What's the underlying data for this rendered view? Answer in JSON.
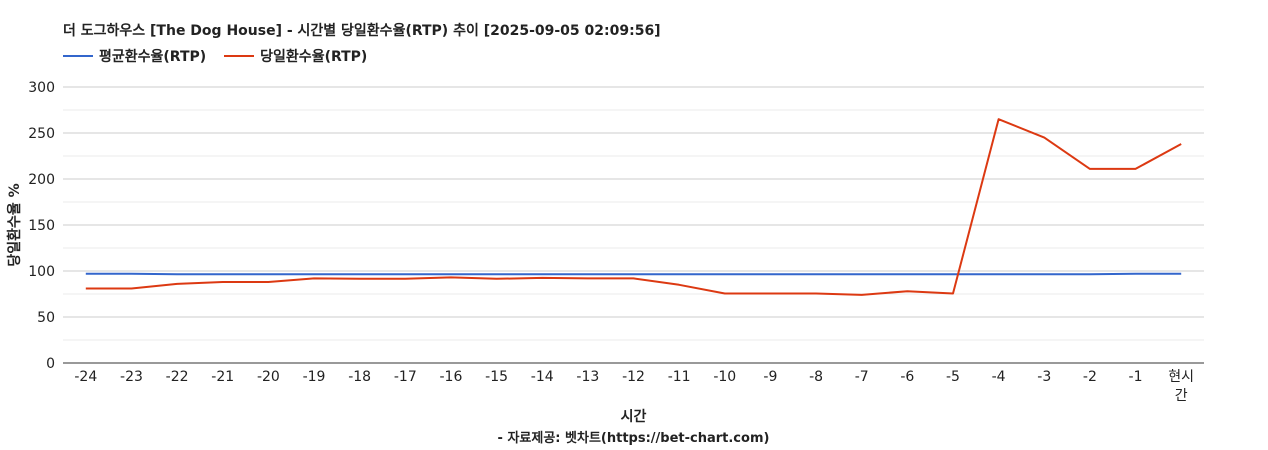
{
  "chart_data": {
    "type": "line",
    "title": "더 도그하우스 [The Dog House] - 시간별 당일환수율(RTP) 추이 [2025-09-05 02:09:56]",
    "xlabel": "시간",
    "ylabel": "당일환수율 %",
    "source": "- 자료제공: 벳차트(https://bet-chart.com)",
    "categories": [
      "-24",
      "-23",
      "-22",
      "-21",
      "-20",
      "-19",
      "-18",
      "-17",
      "-16",
      "-15",
      "-14",
      "-13",
      "-12",
      "-11",
      "-10",
      "-9",
      "-8",
      "-7",
      "-6",
      "-5",
      "-4",
      "-3",
      "-2",
      "-1",
      "현시간"
    ],
    "ylim": [
      0,
      300
    ],
    "yticks": [
      0,
      50,
      100,
      150,
      200,
      250,
      300
    ],
    "grid": true,
    "legend_position": "top-left",
    "series": [
      {
        "name": "평균환수율(RTP)",
        "color": "#3366cc",
        "values": [
          97,
          97,
          96.5,
          96.5,
          96.5,
          96.5,
          96.5,
          96.5,
          96.5,
          96.5,
          96.5,
          96.5,
          96.5,
          96.5,
          96.5,
          96.5,
          96.5,
          96.5,
          96.5,
          96.5,
          96.5,
          96.5,
          96.5,
          97,
          97
        ]
      },
      {
        "name": "당일환수율(RTP)",
        "color": "#dc3912",
        "values": [
          81,
          81,
          86,
          88,
          88,
          92,
          91.5,
          91.5,
          93,
          91.5,
          92.5,
          92,
          92,
          85,
          75.5,
          75.5,
          75.5,
          74,
          78,
          75.5,
          265,
          245,
          211,
          211,
          238
        ]
      }
    ]
  }
}
